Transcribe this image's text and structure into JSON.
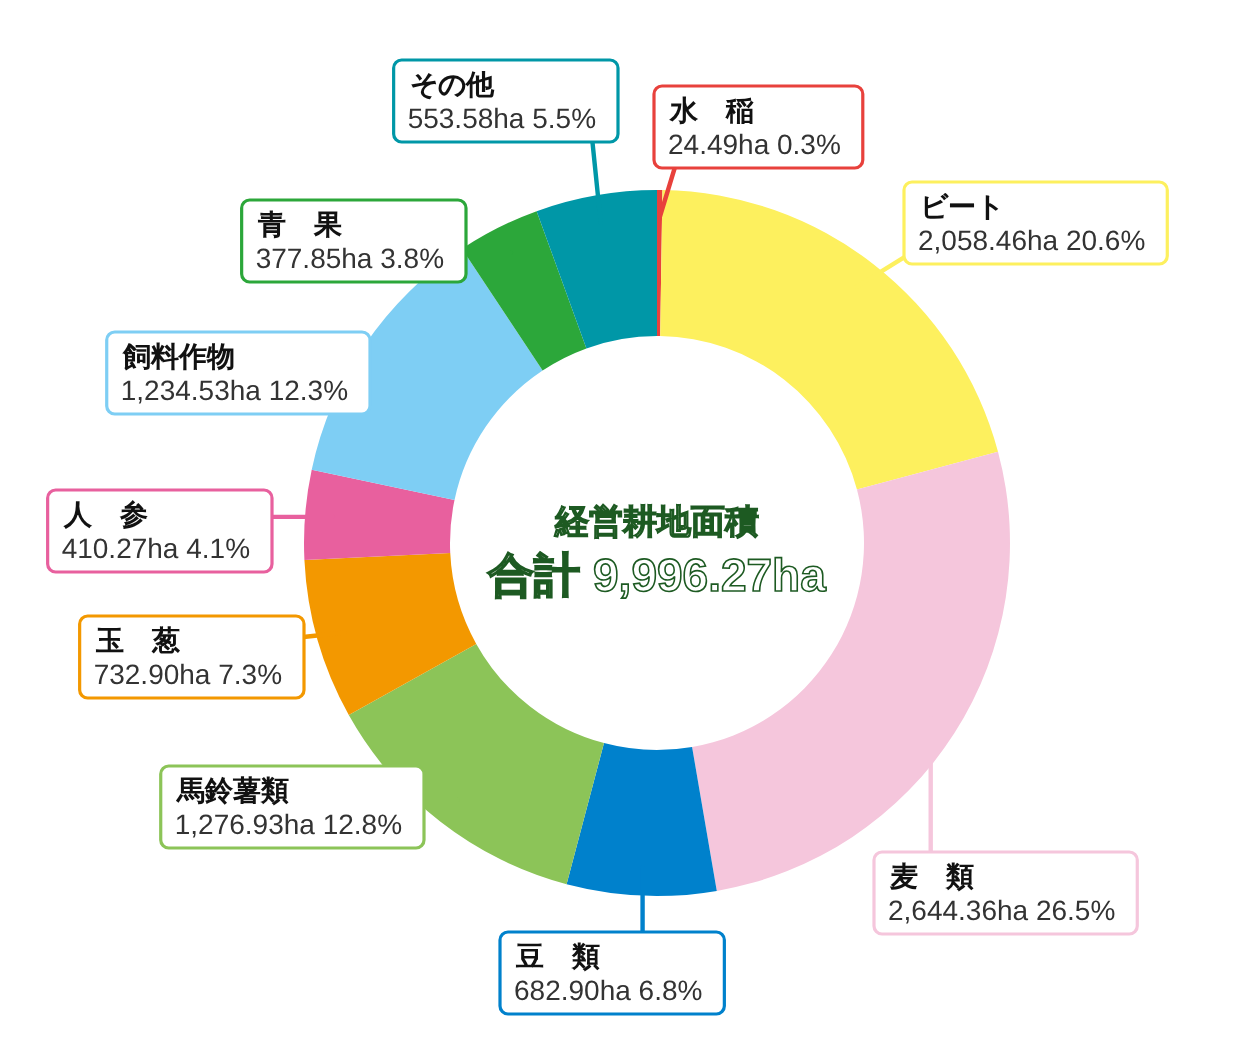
{
  "chart_data": {
    "type": "donut",
    "title": "経営耕地面積",
    "subtitle": "合計 9,996.27ha",
    "categories": [
      "水　稲",
      "ビート",
      "麦　類",
      "豆　類",
      "馬鈴薯類",
      "玉　葱",
      "人　参",
      "飼料作物",
      "青　果",
      "その他"
    ],
    "values": [
      24.49,
      2058.46,
      2644.36,
      682.9,
      1276.93,
      732.9,
      410.27,
      1234.53,
      377.85,
      553.58
    ],
    "colors": [
      "#e8413c",
      "#fdf05e",
      "#f5c6dc",
      "#0081cc",
      "#8cc458",
      "#f39800",
      "#e8609e",
      "#7ecef4",
      "#2ca73a",
      "#0097a7"
    ],
    "value_labels": [
      "24.49ha 0.3%",
      "2,058.46ha 20.6%",
      "2,644.36ha 26.5%",
      "682.90ha 6.8%",
      "1,276.93ha 12.8%",
      "732.90ha 7.3%",
      "410.27ha 4.1%",
      "1,234.53ha 12.3%",
      "377.85ha 3.8%",
      "553.58ha 5.5%"
    ]
  }
}
